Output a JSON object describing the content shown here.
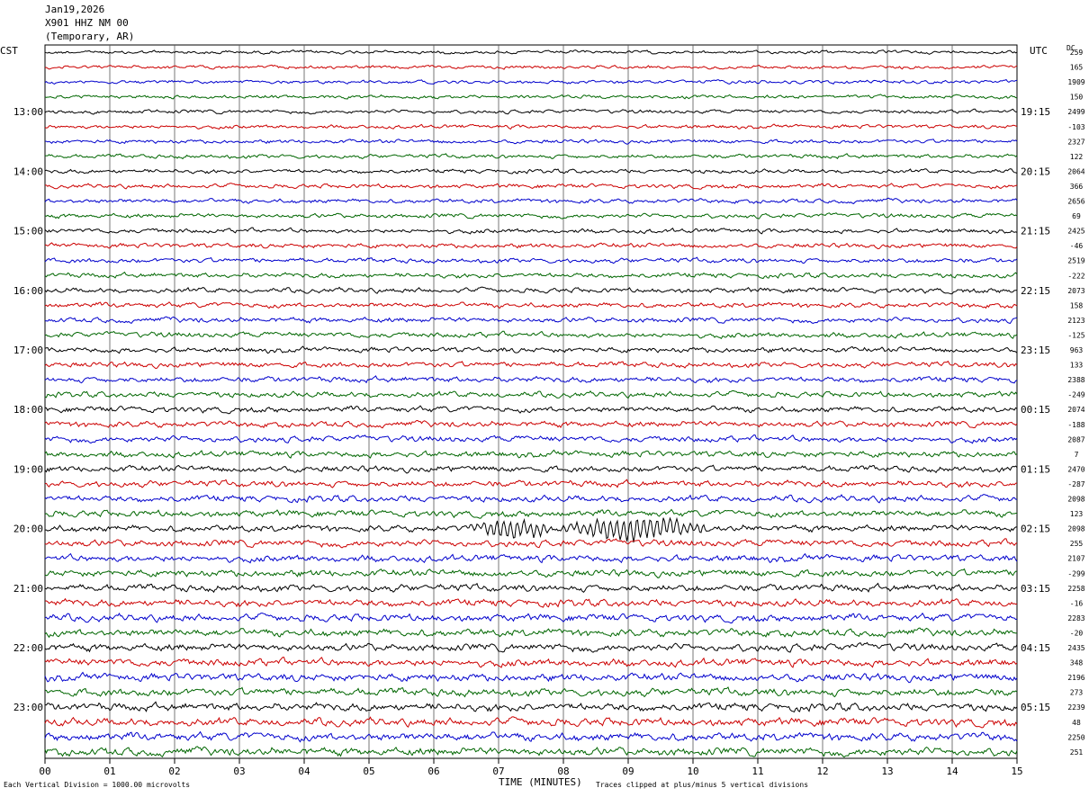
{
  "header": {
    "date": "Jan19,2026",
    "station": "X901 HHZ NM 00",
    "location": "(Temporary, AR)"
  },
  "left_zone": "CST",
  "right_zone": "UTC",
  "dc_label": "DC",
  "footer": {
    "scale_note": "Each Vertical Division = 1000.00 microvolts",
    "clip_note": "Traces clipped at plus/minus 5 vertical divisions"
  },
  "chart_data": {
    "type": "line",
    "subtype": "helicorder",
    "xlabel": "TIME (MINUTES)",
    "x_ticks": [
      "00",
      "01",
      "02",
      "03",
      "04",
      "05",
      "06",
      "07",
      "08",
      "09",
      "10",
      "11",
      "12",
      "13",
      "14",
      "15"
    ],
    "xlim": [
      0,
      15
    ],
    "trace_count": 48,
    "trace_colors": [
      "#000000",
      "#cc0000",
      "#0000cc",
      "#006600"
    ],
    "left_hour_labels": [
      "13:00",
      "14:00",
      "15:00",
      "16:00",
      "17:00",
      "18:00",
      "19:00",
      "20:00",
      "21:00",
      "22:00",
      "23:00"
    ],
    "right_hour_labels": [
      "19:15",
      "20:15",
      "21:15",
      "22:15",
      "23:15",
      "00:15",
      "01:15",
      "02:15",
      "03:15",
      "04:15",
      "05:15"
    ],
    "dc_offsets": [
      "259",
      "165",
      "1909",
      "150",
      "2499",
      "-103",
      "2327",
      "122",
      "2064",
      "366",
      "2656",
      "69",
      "2425",
      "-46",
      "2519",
      "-222",
      "2073",
      "158",
      "2123",
      "-125",
      "963",
      "133",
      "2388",
      "-249",
      "2074",
      "-188",
      "2087",
      "7",
      "2470",
      "-287",
      "2098",
      "123",
      "2098",
      "255",
      "2107",
      "-299",
      "2258",
      "-16",
      "2283",
      "-20",
      "2435",
      "348",
      "2196",
      "273",
      "2239",
      "48",
      "2250",
      "251"
    ],
    "events": [
      {
        "trace_index": 32,
        "start_min": 6.5,
        "end_min": 10.3,
        "description": "earthquake signal"
      }
    ]
  }
}
